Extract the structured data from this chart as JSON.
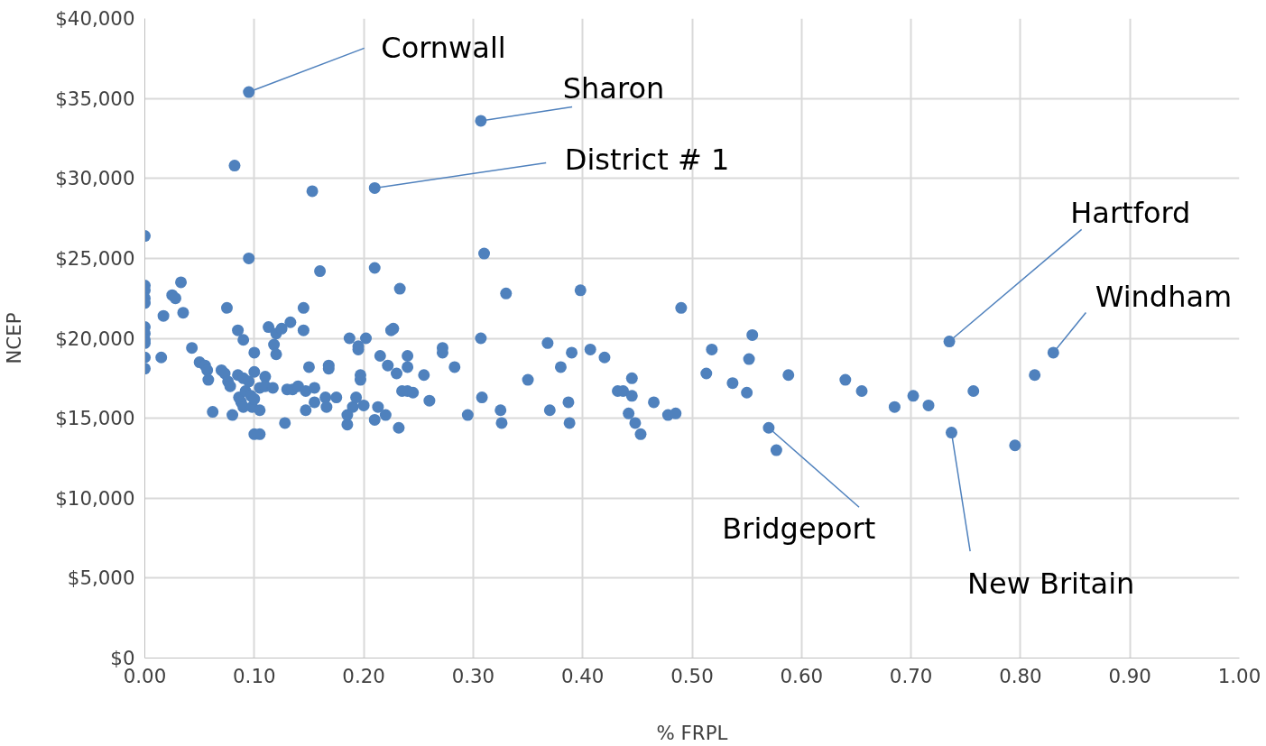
{
  "chart_data": {
    "type": "scatter",
    "xlabel": "% FRPL",
    "ylabel": "NCEP",
    "xlim": [
      0,
      1
    ],
    "ylim": [
      0,
      40000
    ],
    "xticks": [
      {
        "value": 0,
        "label": "0.00"
      },
      {
        "value": 0.1,
        "label": "0.10"
      },
      {
        "value": 0.2,
        "label": "0.20"
      },
      {
        "value": 0.3,
        "label": "0.30"
      },
      {
        "value": 0.4,
        "label": "0.40"
      },
      {
        "value": 0.5,
        "label": "0.50"
      },
      {
        "value": 0.6,
        "label": "0.60"
      },
      {
        "value": 0.7,
        "label": "0.70"
      },
      {
        "value": 0.8,
        "label": "0.80"
      },
      {
        "value": 0.9,
        "label": "0.90"
      },
      {
        "value": 1,
        "label": "1.00"
      }
    ],
    "yticks": [
      {
        "value": 0,
        "label": "$0"
      },
      {
        "value": 5000,
        "label": "$5,000"
      },
      {
        "value": 10000,
        "label": "$10,000"
      },
      {
        "value": 15000,
        "label": "$15,000"
      },
      {
        "value": 20000,
        "label": "$20,000"
      },
      {
        "value": 25000,
        "label": "$25,000"
      },
      {
        "value": 30000,
        "label": "$30,000"
      },
      {
        "value": 35000,
        "label": "$35,000"
      },
      {
        "value": 40000,
        "label": "$40,000"
      }
    ],
    "grid": true,
    "marker": "circle",
    "series": [
      {
        "color": "#4f81bd",
        "x": [
          0,
          0,
          0,
          0,
          0,
          0,
          0,
          0,
          0,
          0,
          0,
          0.015,
          0.017,
          0.025,
          0.028,
          0.033,
          0.035,
          0.043,
          0.05,
          0.055,
          0.057,
          0.058,
          0.062,
          0.07,
          0.073,
          0.075,
          0.076,
          0.078,
          0.08,
          0.082,
          0.085,
          0.085,
          0.086,
          0.088,
          0.09,
          0.09,
          0.09,
          0.092,
          0.095,
          0.095,
          0.095,
          0.097,
          0.098,
          0.1,
          0.1,
          0.1,
          0.1,
          0.105,
          0.105,
          0.105,
          0.11,
          0.11,
          0.113,
          0.117,
          0.118,
          0.12,
          0.12,
          0.125,
          0.128,
          0.13,
          0.133,
          0.135,
          0.14,
          0.145,
          0.145,
          0.147,
          0.147,
          0.15,
          0.153,
          0.155,
          0.155,
          0.16,
          0.165,
          0.166,
          0.168,
          0.168,
          0.175,
          0.185,
          0.185,
          0.187,
          0.19,
          0.193,
          0.195,
          0.195,
          0.197,
          0.197,
          0.2,
          0.202,
          0.21,
          0.21,
          0.21,
          0.213,
          0.215,
          0.22,
          0.222,
          0.225,
          0.227,
          0.23,
          0.232,
          0.233,
          0.235,
          0.24,
          0.24,
          0.24,
          0.245,
          0.255,
          0.26,
          0.272,
          0.272,
          0.283,
          0.295,
          0.307,
          0.307,
          0.308,
          0.31,
          0.325,
          0.326,
          0.33,
          0.35,
          0.368,
          0.37,
          0.38,
          0.387,
          0.388,
          0.39,
          0.398,
          0.407,
          0.42,
          0.432,
          0.437,
          0.442,
          0.445,
          0.445,
          0.448,
          0.453,
          0.465,
          0.478,
          0.485,
          0.49,
          0.513,
          0.518,
          0.537,
          0.55,
          0.552,
          0.555,
          0.57,
          0.577,
          0.588,
          0.64,
          0.655,
          0.685,
          0.702,
          0.716,
          0.735,
          0.737,
          0.757,
          0.795,
          0.813,
          0.83
        ],
        "values": [
          26400,
          23300,
          23000,
          22500,
          22200,
          20700,
          20300,
          19900,
          19700,
          18800,
          18100,
          18800,
          21400,
          22700,
          22500,
          23500,
          21600,
          19400,
          18500,
          18300,
          18000,
          17400,
          15400,
          18000,
          17800,
          21900,
          17300,
          17000,
          15200,
          30800,
          20500,
          17700,
          16300,
          16000,
          19900,
          17500,
          15700,
          16700,
          35400,
          25000,
          17300,
          16400,
          15700,
          19100,
          17900,
          16200,
          14000,
          14000,
          15500,
          16900,
          17600,
          17000,
          20700,
          16900,
          19600,
          20300,
          19000,
          20600,
          14700,
          16800,
          21000,
          16800,
          17000,
          21900,
          20500,
          15500,
          16700,
          18200,
          29200,
          16000,
          16900,
          24200,
          16300,
          15700,
          18300,
          18100,
          16300,
          15200,
          14600,
          20000,
          15700,
          16300,
          19500,
          19300,
          17700,
          17400,
          15800,
          20000,
          29400,
          24400,
          14900,
          15700,
          18900,
          15200,
          18300,
          20500,
          20600,
          17800,
          14400,
          23100,
          16700,
          18900,
          18200,
          16700,
          16600,
          17700,
          16100,
          19400,
          19100,
          18200,
          15200,
          33600,
          20000,
          16300,
          25300,
          15500,
          14700,
          22800,
          17400,
          19700,
          15500,
          18200,
          16000,
          14700,
          19100,
          23000,
          19300,
          18800,
          16700,
          16700,
          15300,
          17500,
          16400,
          14700,
          14000,
          16000,
          15200,
          15300,
          21900,
          17800,
          19300,
          17200,
          16600,
          18700,
          20200,
          14400,
          13000,
          17700,
          17400,
          16700,
          15700,
          16400,
          15800,
          19800,
          14100,
          16700,
          13300,
          17700,
          19100
        ]
      }
    ],
    "annotations": [
      {
        "text": "Cornwall",
        "x": 0.095,
        "y": 35400
      },
      {
        "text": "Sharon",
        "x": 0.307,
        "y": 33600
      },
      {
        "text": "District # 1",
        "x": 0.21,
        "y": 29400
      },
      {
        "text": "Hartford",
        "x": 0.735,
        "y": 19800
      },
      {
        "text": "Windham",
        "x": 0.83,
        "y": 19100
      },
      {
        "text": "Bridgeport",
        "x": 0.57,
        "y": 14400
      },
      {
        "text": "New Britain",
        "x": 0.737,
        "y": 14100
      }
    ]
  }
}
